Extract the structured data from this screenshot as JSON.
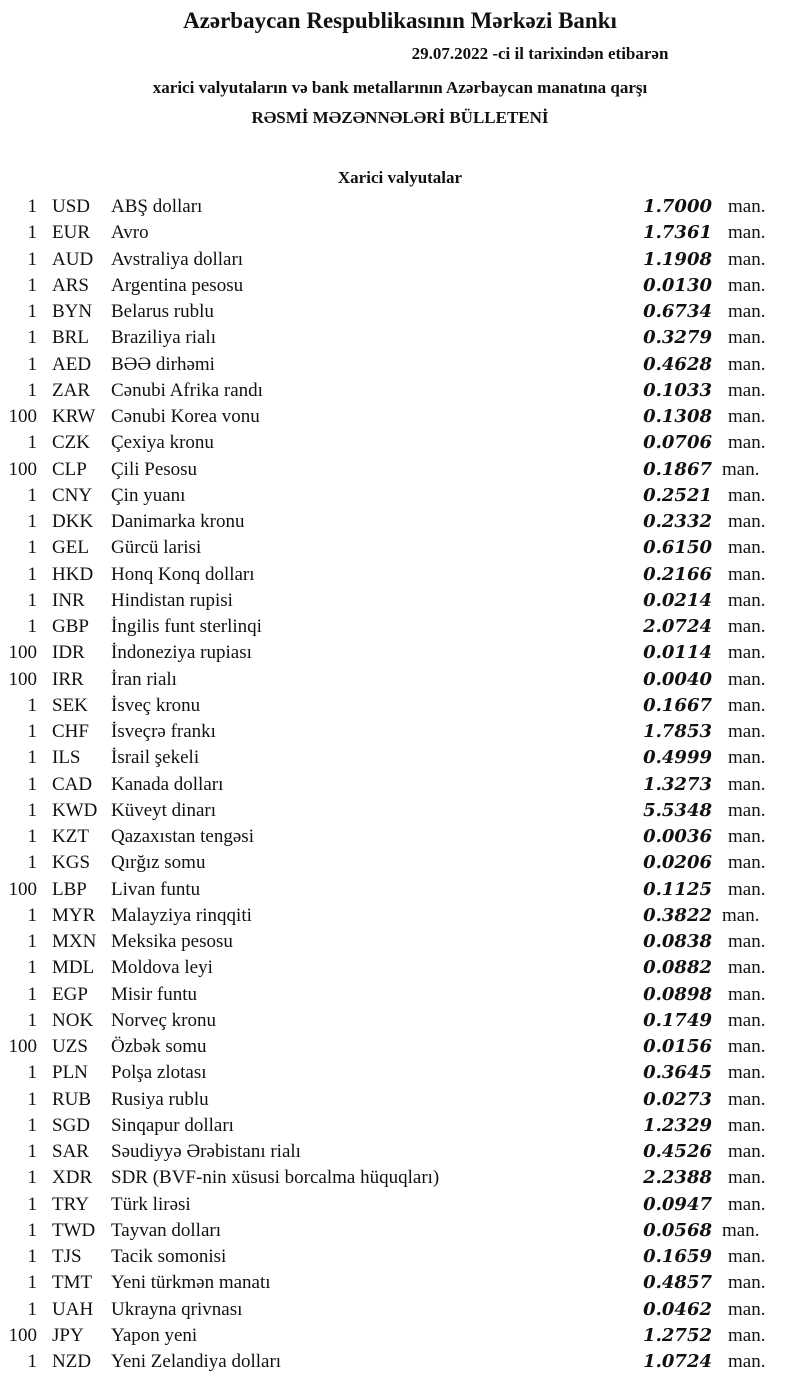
{
  "header": {
    "title": "Azərbaycan Respublikasının Mərkəzi Bankı",
    "date_line": "29.07.2022 -ci il tarixindən etibarən",
    "subtitle": "xarici valyutaların və bank metallarının Azərbaycan manatına qarşı",
    "bulletin": "RƏSMİ MƏZƏNNƏLƏRİ BÜLLETENİ",
    "section": "Xarici valyutalar"
  },
  "unit": "man.",
  "rates": [
    {
      "nominal": "1",
      "code": "USD",
      "name": "ABŞ dolları",
      "rate": "1.7000"
    },
    {
      "nominal": "1",
      "code": "EUR",
      "name": "Avro",
      "rate": "1.7361"
    },
    {
      "nominal": "1",
      "code": "AUD",
      "name": "Avstraliya dolları",
      "rate": "1.1908"
    },
    {
      "nominal": "1",
      "code": "ARS",
      "name": "Argentina pesosu",
      "rate": "0.0130"
    },
    {
      "nominal": "1",
      "code": "BYN",
      "name": "Belarus rublu",
      "rate": "0.6734"
    },
    {
      "nominal": "1",
      "code": "BRL",
      "name": "Braziliya rialı",
      "rate": "0.3279"
    },
    {
      "nominal": "1",
      "code": "AED",
      "name": "BƏƏ dirhəmi",
      "rate": "0.4628"
    },
    {
      "nominal": "1",
      "code": "ZAR",
      "name": "Cənubi Afrika randı",
      "rate": "0.1033"
    },
    {
      "nominal": "100",
      "code": "KRW",
      "name": "Cənubi Korea vonu",
      "rate": "0.1308"
    },
    {
      "nominal": "1",
      "code": "CZK",
      "name": "Çexiya kronu",
      "rate": "0.0706"
    },
    {
      "nominal": "100",
      "code": "CLP",
      "name": "Çili Pesosu",
      "rate": "0.1867",
      "tight": true
    },
    {
      "nominal": "1",
      "code": "CNY",
      "name": "Çin yuanı",
      "rate": "0.2521"
    },
    {
      "nominal": "1",
      "code": "DKK",
      "name": "Danimarka kronu",
      "rate": "0.2332"
    },
    {
      "nominal": "1",
      "code": "GEL",
      "name": "Gürcü larisi",
      "rate": "0.6150"
    },
    {
      "nominal": "1",
      "code": "HKD",
      "name": "Honq Konq dolları",
      "rate": "0.2166"
    },
    {
      "nominal": "1",
      "code": "INR",
      "name": "Hindistan rupisi",
      "rate": "0.0214"
    },
    {
      "nominal": "1",
      "code": "GBP",
      "name": "İngilis funt sterlinqi",
      "rate": "2.0724"
    },
    {
      "nominal": "100",
      "code": "IDR",
      "name": "İndoneziya rupiası",
      "rate": "0.0114"
    },
    {
      "nominal": "100",
      "code": "IRR",
      "name": "İran rialı",
      "rate": "0.0040"
    },
    {
      "nominal": "1",
      "code": "SEK",
      "name": "İsveç kronu",
      "rate": "0.1667"
    },
    {
      "nominal": "1",
      "code": "CHF",
      "name": "İsveçrə frankı",
      "rate": "1.7853"
    },
    {
      "nominal": "1",
      "code": "ILS",
      "name": "İsrail şekeli",
      "rate": "0.4999"
    },
    {
      "nominal": "1",
      "code": "CAD",
      "name": "Kanada dolları",
      "rate": "1.3273"
    },
    {
      "nominal": "1",
      "code": "KWD",
      "name": "Küveyt dinarı",
      "rate": "5.5348"
    },
    {
      "nominal": "1",
      "code": "KZT",
      "name": "Qazaxıstan tengəsi",
      "rate": "0.0036"
    },
    {
      "nominal": "1",
      "code": "KGS",
      "name": "Qırğız somu",
      "rate": "0.0206"
    },
    {
      "nominal": "100",
      "code": "LBP",
      "name": "Livan funtu",
      "rate": "0.1125"
    },
    {
      "nominal": "1",
      "code": "MYR",
      "name": "Malayziya rinqqiti",
      "rate": "0.3822",
      "tight": true
    },
    {
      "nominal": "1",
      "code": "MXN",
      "name": "Meksika pesosu",
      "rate": "0.0838"
    },
    {
      "nominal": "1",
      "code": "MDL",
      "name": "Moldova leyi",
      "rate": "0.0882"
    },
    {
      "nominal": "1",
      "code": "EGP",
      "name": "Misir funtu",
      "rate": "0.0898"
    },
    {
      "nominal": "1",
      "code": "NOK",
      "name": "Norveç kronu",
      "rate": "0.1749"
    },
    {
      "nominal": "100",
      "code": "UZS",
      "name": "Özbək somu",
      "rate": "0.0156"
    },
    {
      "nominal": "1",
      "code": "PLN",
      "name": "Polşa zlotası",
      "rate": "0.3645"
    },
    {
      "nominal": "1",
      "code": "RUB",
      "name": "Rusiya rublu",
      "rate": "0.0273"
    },
    {
      "nominal": "1",
      "code": "SGD",
      "name": "Sinqapur dolları",
      "rate": "1.2329"
    },
    {
      "nominal": "1",
      "code": "SAR",
      "name": "Səudiyyə Ərəbistanı rialı",
      "rate": "0.4526"
    },
    {
      "nominal": "1",
      "code": "XDR",
      "name": "SDR (BVF-nin xüsusi borcalma hüquqları)",
      "rate": "2.2388"
    },
    {
      "nominal": "1",
      "code": "TRY",
      "name": "Türk lirəsi",
      "rate": "0.0947"
    },
    {
      "nominal": "1",
      "code": "TWD",
      "name": "Tayvan dolları",
      "rate": "0.0568",
      "tight": true
    },
    {
      "nominal": "1",
      "code": "TJS",
      "name": "Tacik somonisi",
      "rate": "0.1659"
    },
    {
      "nominal": "1",
      "code": "TMT",
      "name": "Yeni türkmən manatı",
      "rate": "0.4857"
    },
    {
      "nominal": "1",
      "code": "UAH",
      "name": "Ukrayna qrivnası",
      "rate": "0.0462"
    },
    {
      "nominal": "100",
      "code": "JPY",
      "name": "Yapon yeni",
      "rate": "1.2752"
    },
    {
      "nominal": "1",
      "code": "NZD",
      "name": "Yeni Zelandiya dolları",
      "rate": "1.0724"
    }
  ]
}
